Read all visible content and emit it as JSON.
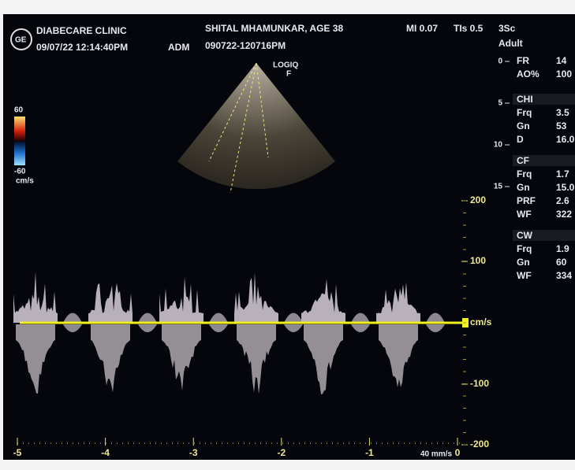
{
  "header": {
    "clinic": "DIABECARE CLINIC",
    "datetime": "09/07/22 12:14:40PM",
    "operator": "ADM",
    "patient": "SHITAL MHAMUNKAR, AGE 38",
    "exam_id": "090722-120716PM",
    "mi": "MI 0.07",
    "tis": "TIs 0.5",
    "probe": "3Sc",
    "preset": "Adult"
  },
  "color_bar": {
    "max": "60",
    "min": "-60",
    "unit": "cm/s"
  },
  "image": {
    "logo": "LOGIQ",
    "mode": "F",
    "depth_ticks": [
      "0",
      "5",
      "10",
      "15"
    ]
  },
  "parameters": {
    "general": [
      {
        "label": "FR",
        "value": "14"
      },
      {
        "label": "AO%",
        "value": "100"
      }
    ],
    "sections": [
      {
        "title": "CHI",
        "rows": [
          {
            "label": "Frq",
            "value": "3.5"
          },
          {
            "label": "Gn",
            "value": "53"
          },
          {
            "label": "D",
            "value": "16.0"
          }
        ]
      },
      {
        "title": "CF",
        "rows": [
          {
            "label": "Frq",
            "value": "1.7"
          },
          {
            "label": "Gn",
            "value": "15.0"
          },
          {
            "label": "PRF",
            "value": "2.6"
          },
          {
            "label": "WF",
            "value": "322"
          }
        ]
      },
      {
        "title": "CW",
        "rows": [
          {
            "label": "Frq",
            "value": "1.9"
          },
          {
            "label": "Gn",
            "value": "60"
          },
          {
            "label": "WF",
            "value": "334"
          }
        ]
      }
    ]
  },
  "doppler": {
    "velocity_ticks": [
      "200",
      "100",
      "-100",
      "-200"
    ],
    "unit": "cm/s",
    "time_ticks": [
      "-5",
      "-4",
      "-3",
      "-2",
      "-1",
      "0"
    ],
    "sweep": "40 mm/s"
  }
}
